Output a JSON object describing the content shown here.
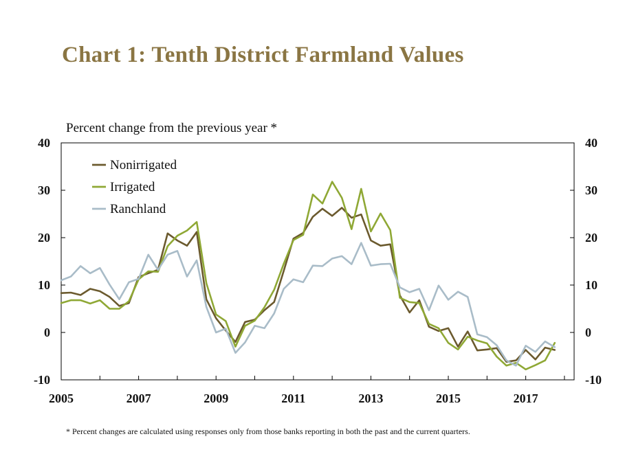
{
  "title": "Chart 1: Tenth District Farmland Values",
  "footnote": "* Percent changes are calculated using responses only from those banks reporting in both the past and the current quarters.",
  "chart_data": {
    "type": "line",
    "title": "Chart 1: Tenth District Farmland Values",
    "unit_label": "Percent change from the previous year *",
    "x_start": 2005.0,
    "x_step": 0.25,
    "xlim": [
      2005,
      2018.25
    ],
    "x_ticks": [
      2005,
      2007,
      2009,
      2011,
      2013,
      2015,
      2017
    ],
    "ylim": [
      -10,
      40
    ],
    "y_ticks": [
      -10,
      0,
      10,
      20,
      30,
      40
    ],
    "legend_position": "top-left",
    "grid": false,
    "series": [
      {
        "name": "Nonirrigated",
        "color": "#6b5a2e",
        "values": [
          8.3,
          8.4,
          7.9,
          9.2,
          8.7,
          7.5,
          5.6,
          6.2,
          11.7,
          12.5,
          13.2,
          20.9,
          19.4,
          18.3,
          21.2,
          7.0,
          3.0,
          0.4,
          -2.0,
          2.2,
          2.7,
          4.7,
          6.4,
          13.0,
          19.8,
          21.0,
          24.4,
          26.1,
          24.6,
          26.3,
          24.2,
          24.9,
          19.4,
          18.3,
          18.6,
          7.8,
          4.2,
          6.8,
          1.2,
          0.3,
          0.9,
          -3.0,
          0.2,
          -3.8,
          -3.6,
          -3.3,
          -6.2,
          -5.9,
          -3.7,
          -5.7,
          -3.2,
          -3.7
        ]
      },
      {
        "name": "Irrigated",
        "color": "#8fa835",
        "values": [
          6.2,
          6.8,
          6.8,
          6.1,
          6.8,
          5.0,
          5.0,
          6.6,
          11.2,
          12.9,
          12.8,
          18.2,
          20.4,
          21.5,
          23.3,
          10.4,
          3.8,
          2.4,
          -3.0,
          1.4,
          2.5,
          5.3,
          9.0,
          14.5,
          19.5,
          20.6,
          29.1,
          27.2,
          31.8,
          28.4,
          21.8,
          30.3,
          21.3,
          25.1,
          21.6,
          7.3,
          6.4,
          6.2,
          1.8,
          0.9,
          -2.2,
          -3.6,
          -0.9,
          -1.7,
          -2.3,
          -5.1,
          -7.0,
          -6.4,
          -7.8,
          -6.9,
          -5.9,
          -2.2
        ]
      },
      {
        "name": "Ranchland",
        "color": "#a9bcc8",
        "values": [
          11.0,
          11.8,
          14.0,
          12.5,
          13.6,
          10.1,
          7.0,
          10.6,
          11.3,
          16.4,
          13.2,
          16.4,
          17.2,
          11.8,
          15.2,
          5.4,
          0.0,
          0.8,
          -4.3,
          -2.1,
          1.4,
          0.9,
          4.0,
          9.2,
          11.2,
          10.6,
          14.1,
          14.0,
          15.6,
          16.1,
          14.4,
          18.9,
          14.1,
          14.4,
          14.5,
          9.5,
          8.5,
          9.2,
          4.7,
          9.9,
          6.9,
          8.6,
          7.5,
          -0.4,
          -1.0,
          -2.7,
          -5.9,
          -7.0,
          -2.8,
          -4.1,
          -1.9,
          -3.1
        ]
      }
    ]
  }
}
